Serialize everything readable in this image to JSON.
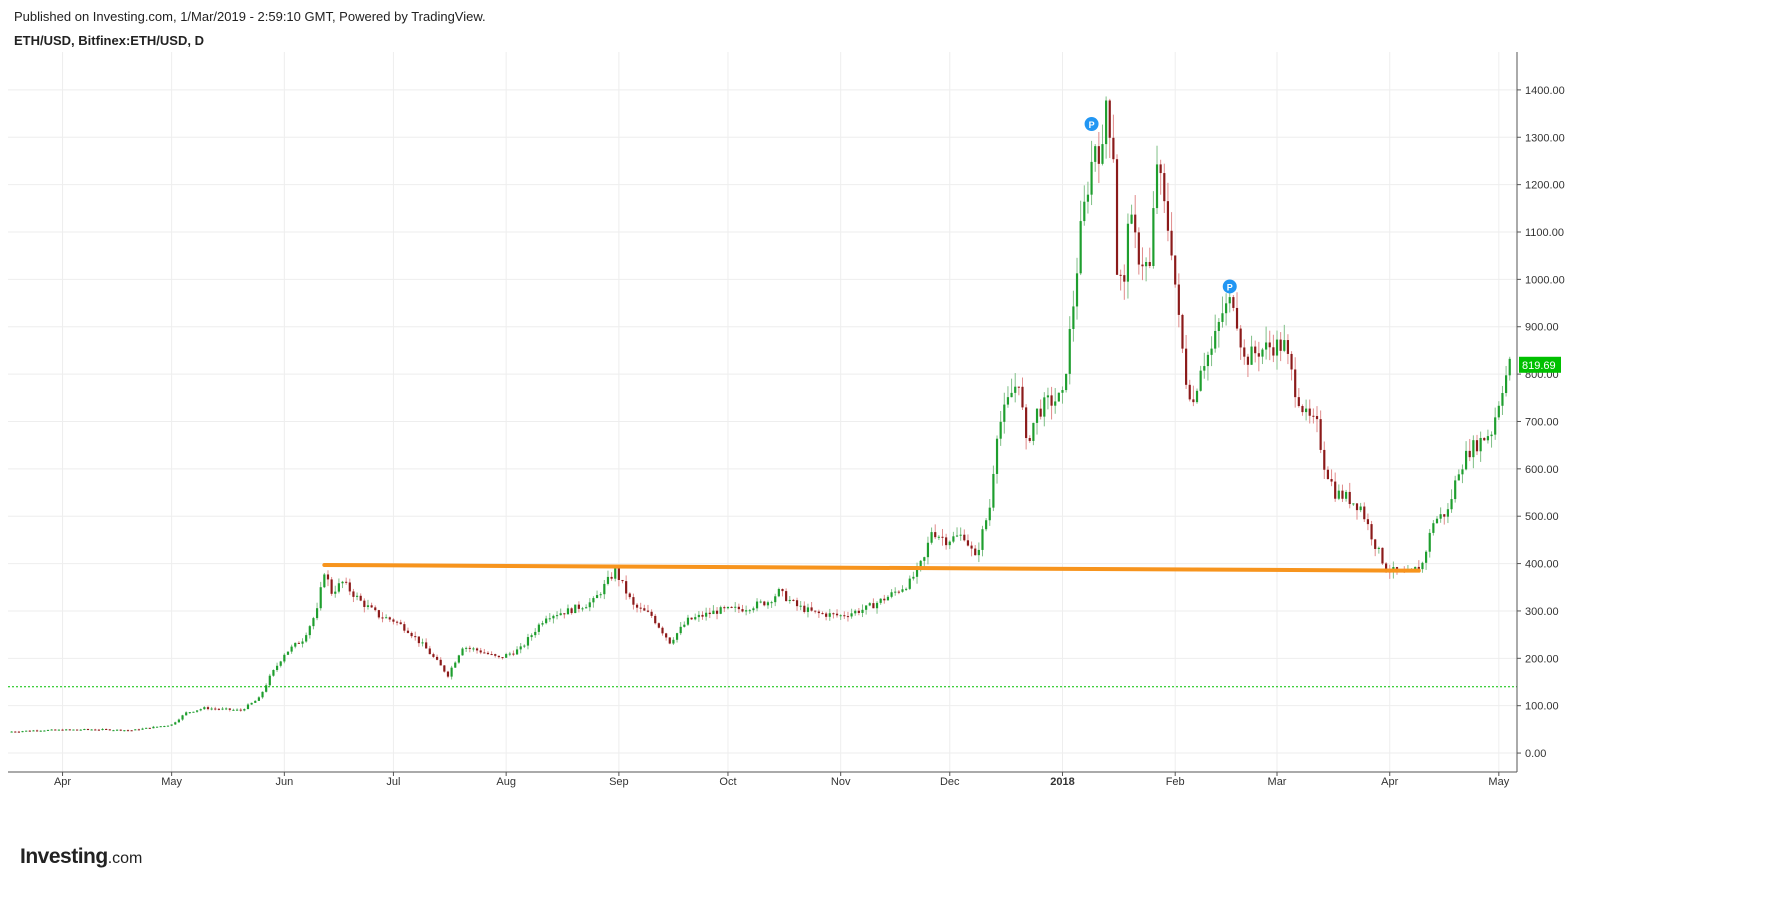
{
  "header": {
    "published": "Published on Investing.com, 1/Mar/2019 - 2:59:10 GMT, Powered by TradingView.",
    "symbol": "ETH/USD, Bitfinex:ETH/USD, D"
  },
  "logo": {
    "main": "Investing",
    "suffix": ".com"
  },
  "colors": {
    "up": "#1e9e2e",
    "down": "#8b1a1a",
    "wick_up": "#7fbf86",
    "wick_down": "#e08a8a",
    "trendline": "#f7941d",
    "hline": "#00c000",
    "grid": "#eeeeee",
    "price_tag": "#00c000",
    "marker": "#2196f3"
  },
  "chart_data": {
    "type": "candlestick",
    "title": "ETH/USD, Bitfinex:ETH/USD, D",
    "y_ticks": [
      "1400.00",
      "1300.00",
      "1200.00",
      "1100.00",
      "1000.00",
      "900.00",
      "800.00",
      "700.00",
      "600.00",
      "500.00",
      "400.00",
      "300.00",
      "200.00",
      "100.00",
      "0.00"
    ],
    "ylim": [
      -40,
      1480
    ],
    "x_ticks": [
      {
        "label": "Apr",
        "date": "2017-04-01"
      },
      {
        "label": "May",
        "date": "2017-05-01"
      },
      {
        "label": "Jun",
        "date": "2017-06-01"
      },
      {
        "label": "Jul",
        "date": "2017-07-01"
      },
      {
        "label": "Aug",
        "date": "2017-08-01"
      },
      {
        "label": "Sep",
        "date": "2017-09-01"
      },
      {
        "label": "Oct",
        "date": "2017-10-01"
      },
      {
        "label": "Nov",
        "date": "2017-11-01"
      },
      {
        "label": "Dec",
        "date": "2017-12-01"
      },
      {
        "label": "2018",
        "date": "2018-01-01",
        "bold": true
      },
      {
        "label": "Feb",
        "date": "2018-02-01"
      },
      {
        "label": "Mar",
        "date": "2018-03-01"
      },
      {
        "label": "Apr",
        "date": "2018-04-01"
      },
      {
        "label": "May",
        "date": "2018-05-01"
      }
    ],
    "x_range": [
      "2017-03-17",
      "2018-05-06"
    ],
    "last_price": "819.69",
    "grid": true,
    "close_path": [
      [
        "2017-03-17",
        45
      ],
      [
        "2017-03-25",
        48
      ],
      [
        "2017-04-10",
        50
      ],
      [
        "2017-04-20",
        48
      ],
      [
        "2017-05-01",
        60
      ],
      [
        "2017-05-05",
        85
      ],
      [
        "2017-05-10",
        95
      ],
      [
        "2017-05-20",
        90
      ],
      [
        "2017-05-25",
        115
      ],
      [
        "2017-05-28",
        160
      ],
      [
        "2017-06-01",
        210
      ],
      [
        "2017-06-06",
        240
      ],
      [
        "2017-06-10",
        300
      ],
      [
        "2017-06-12",
        385
      ],
      [
        "2017-06-14",
        340
      ],
      [
        "2017-06-17",
        360
      ],
      [
        "2017-06-22",
        320
      ],
      [
        "2017-06-27",
        290
      ],
      [
        "2017-07-01",
        280
      ],
      [
        "2017-07-05",
        260
      ],
      [
        "2017-07-10",
        220
      ],
      [
        "2017-07-16",
        165
      ],
      [
        "2017-07-20",
        225
      ],
      [
        "2017-07-25",
        215
      ],
      [
        "2017-07-30",
        200
      ],
      [
        "2017-08-05",
        220
      ],
      [
        "2017-08-12",
        290
      ],
      [
        "2017-08-18",
        300
      ],
      [
        "2017-08-25",
        320
      ],
      [
        "2017-08-31",
        385
      ],
      [
        "2017-09-03",
        340
      ],
      [
        "2017-09-05",
        310
      ],
      [
        "2017-09-10",
        290
      ],
      [
        "2017-09-15",
        235
      ],
      [
        "2017-09-20",
        280
      ],
      [
        "2017-09-28",
        300
      ],
      [
        "2017-10-05",
        305
      ],
      [
        "2017-10-12",
        320
      ],
      [
        "2017-10-15",
        340
      ],
      [
        "2017-10-20",
        310
      ],
      [
        "2017-10-25",
        295
      ],
      [
        "2017-11-01",
        290
      ],
      [
        "2017-11-08",
        305
      ],
      [
        "2017-11-14",
        330
      ],
      [
        "2017-11-20",
        360
      ],
      [
        "2017-11-24",
        410
      ],
      [
        "2017-11-26",
        470
      ],
      [
        "2017-11-30",
        450
      ],
      [
        "2017-12-05",
        460
      ],
      [
        "2017-12-08",
        410
      ],
      [
        "2017-12-12",
        520
      ],
      [
        "2017-12-14",
        680
      ],
      [
        "2017-12-18",
        760
      ],
      [
        "2017-12-20",
        790
      ],
      [
        "2017-12-22",
        650
      ],
      [
        "2017-12-25",
        720
      ],
      [
        "2017-12-28",
        740
      ],
      [
        "2018-01-01",
        750
      ],
      [
        "2018-01-04",
        950
      ],
      [
        "2018-01-06",
        1100
      ],
      [
        "2018-01-08",
        1200
      ],
      [
        "2018-01-10",
        1290
      ],
      [
        "2018-01-12",
        1260
      ],
      [
        "2018-01-13",
        1380
      ],
      [
        "2018-01-15",
        1270
      ],
      [
        "2018-01-16",
        1020
      ],
      [
        "2018-01-18",
        980
      ],
      [
        "2018-01-19",
        1140
      ],
      [
        "2018-01-22",
        1050
      ],
      [
        "2018-01-25",
        1020
      ],
      [
        "2018-01-27",
        1250
      ],
      [
        "2018-01-29",
        1150
      ],
      [
        "2018-01-31",
        1070
      ],
      [
        "2018-02-02",
        910
      ],
      [
        "2018-02-04",
        790
      ],
      [
        "2018-02-06",
        740
      ],
      [
        "2018-02-08",
        820
      ],
      [
        "2018-02-11",
        850
      ],
      [
        "2018-02-14",
        930
      ],
      [
        "2018-02-17",
        960
      ],
      [
        "2018-02-20",
        830
      ],
      [
        "2018-02-24",
        850
      ],
      [
        "2018-02-28",
        860
      ],
      [
        "2018-03-03",
        860
      ],
      [
        "2018-03-06",
        770
      ],
      [
        "2018-03-09",
        710
      ],
      [
        "2018-03-12",
        690
      ],
      [
        "2018-03-14",
        610
      ],
      [
        "2018-03-17",
        550
      ],
      [
        "2018-03-20",
        540
      ],
      [
        "2018-03-24",
        520
      ],
      [
        "2018-03-28",
        440
      ],
      [
        "2018-03-31",
        390
      ],
      [
        "2018-04-03",
        380
      ],
      [
        "2018-04-06",
        375
      ],
      [
        "2018-04-10",
        400
      ],
      [
        "2018-04-13",
        490
      ],
      [
        "2018-04-17",
        510
      ],
      [
        "2018-04-20",
        600
      ],
      [
        "2018-04-23",
        640
      ],
      [
        "2018-04-26",
        660
      ],
      [
        "2018-04-29",
        680
      ],
      [
        "2018-05-02",
        775
      ],
      [
        "2018-05-04",
        819.69
      ]
    ],
    "trendline": [
      [
        "2017-06-12",
        397
      ],
      [
        "2018-04-09",
        385
      ]
    ],
    "hline": 140,
    "markers": [
      {
        "label": "P",
        "date": "2018-01-09",
        "y": 1328
      },
      {
        "label": "P",
        "date": "2018-02-16",
        "y": 985
      }
    ]
  }
}
